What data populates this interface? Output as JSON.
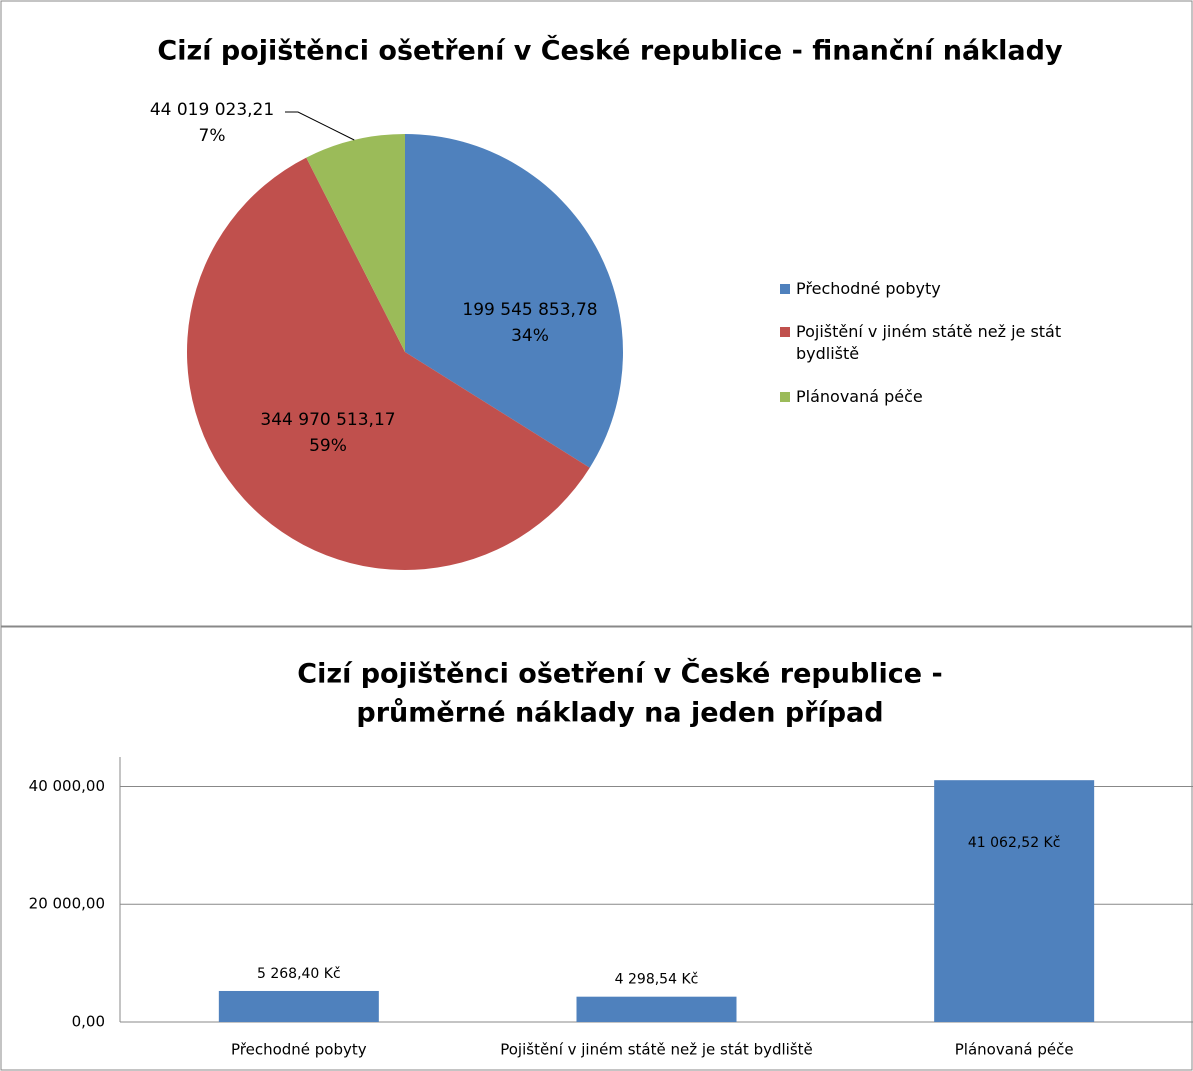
{
  "chart_data": [
    {
      "type": "pie",
      "title": "Cizí pojištěnci ošetření v České republice -  finanční náklady",
      "categories": [
        "Přechodné pobyty",
        "Pojištění v jiném státě než je stát bydliště",
        "Plánovaná péče"
      ],
      "values": [
        199545853.78,
        344970513.17,
        44019023.21
      ],
      "value_labels": [
        "199 545 853,78",
        "344 970 513,17",
        "44 019 023,21"
      ],
      "percent_labels": [
        "34%",
        "59%",
        "7%"
      ],
      "colors": [
        "#4f81bd",
        "#c0504d",
        "#9bbb59"
      ],
      "legend": "right"
    },
    {
      "type": "bar",
      "title": [
        "Cizí pojištěnci ošetření v České republice -",
        "průměrné náklady na jeden případ"
      ],
      "categories": [
        "Přechodné pobyty",
        "Pojištění v jiném státě než je stát bydliště",
        "Plánovaná péče"
      ],
      "values": [
        5268.4,
        4298.54,
        41062.52
      ],
      "value_labels": [
        "5 268,40 Kč",
        "4 298,54 Kč",
        "41 062,52 Kč"
      ],
      "color": "#4f81bd",
      "ylim": [
        0,
        45000
      ],
      "yticks": [
        {
          "value": 0,
          "label": "0,00"
        },
        {
          "value": 20000,
          "label": "20 000,00"
        },
        {
          "value": 40000,
          "label": "40 000,00"
        }
      ],
      "grid": true
    }
  ]
}
